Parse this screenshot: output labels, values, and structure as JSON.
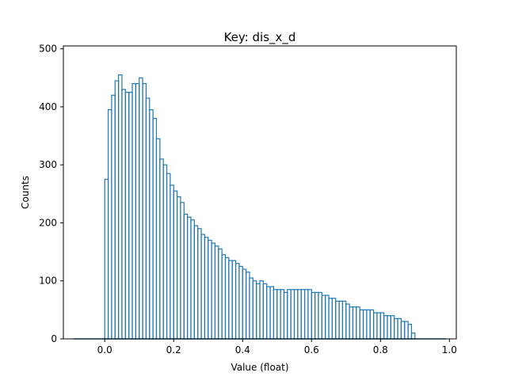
{
  "chart_data": {
    "type": "histogram",
    "title": "Key: dis_x_d",
    "xlabel": "Value (float)",
    "ylabel": "Counts",
    "xlim": [
      -0.12,
      1.02
    ],
    "ylim": [
      0,
      505
    ],
    "xticks": [
      0.0,
      0.2,
      0.4,
      0.6,
      0.8,
      1.0
    ],
    "xtick_labels": [
      "0.0",
      "0.2",
      "0.4",
      "0.6",
      "0.8",
      "1.0"
    ],
    "yticks": [
      0,
      100,
      200,
      300,
      400,
      500
    ],
    "ytick_labels": [
      "0",
      "100",
      "200",
      "300",
      "400",
      "500"
    ],
    "grid": false,
    "series_color": "#1f77b4",
    "bin_range": [
      -0.09,
      0.99
    ],
    "bins": {
      "x": [
        0.005,
        0.015,
        0.025,
        0.035,
        0.045,
        0.055,
        0.065,
        0.075,
        0.085,
        0.095,
        0.105,
        0.115,
        0.125,
        0.135,
        0.145,
        0.155,
        0.165,
        0.175,
        0.185,
        0.195,
        0.205,
        0.215,
        0.225,
        0.235,
        0.245,
        0.255,
        0.265,
        0.275,
        0.285,
        0.295,
        0.305,
        0.315,
        0.325,
        0.335,
        0.345,
        0.355,
        0.365,
        0.375,
        0.385,
        0.395,
        0.405,
        0.415,
        0.425,
        0.435,
        0.445,
        0.455,
        0.465,
        0.475,
        0.485,
        0.495,
        0.505,
        0.515,
        0.525,
        0.535,
        0.545,
        0.555,
        0.565,
        0.575,
        0.585,
        0.595,
        0.605,
        0.615,
        0.625,
        0.635,
        0.645,
        0.655,
        0.665,
        0.675,
        0.685,
        0.695,
        0.705,
        0.715,
        0.725,
        0.735,
        0.745,
        0.755,
        0.765,
        0.775,
        0.785,
        0.795,
        0.805,
        0.815,
        0.825,
        0.835,
        0.845,
        0.855,
        0.865,
        0.875,
        0.885,
        0.895
      ],
      "counts": [
        275,
        395,
        420,
        445,
        455,
        430,
        425,
        425,
        440,
        440,
        450,
        440,
        415,
        395,
        380,
        345,
        310,
        300,
        285,
        265,
        255,
        245,
        235,
        215,
        210,
        205,
        195,
        190,
        180,
        175,
        170,
        165,
        160,
        155,
        145,
        140,
        135,
        135,
        130,
        125,
        120,
        115,
        105,
        100,
        95,
        100,
        95,
        90,
        90,
        85,
        85,
        85,
        80,
        85,
        85,
        85,
        85,
        85,
        85,
        85,
        80,
        80,
        80,
        75,
        75,
        70,
        70,
        65,
        65,
        65,
        60,
        55,
        55,
        55,
        50,
        50,
        50,
        50,
        45,
        45,
        45,
        40,
        40,
        40,
        35,
        35,
        30,
        30,
        25,
        10
      ]
    }
  }
}
